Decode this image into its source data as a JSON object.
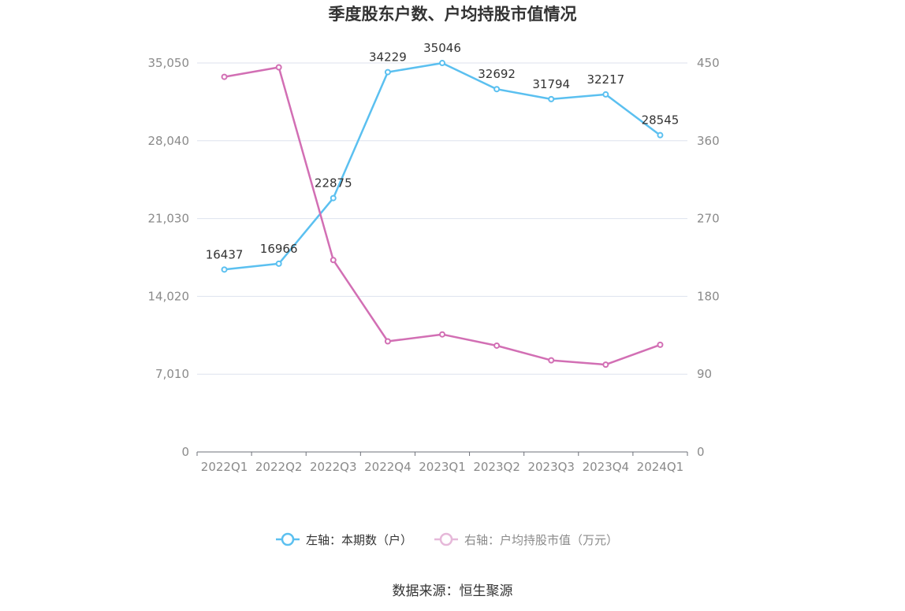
{
  "chart_data": {
    "type": "line",
    "title": "季度股东户数、户均持股市值情况",
    "categories": [
      "2022Q1",
      "2022Q2",
      "2022Q3",
      "2022Q4",
      "2023Q1",
      "2023Q2",
      "2023Q3",
      "2023Q4",
      "2024Q1"
    ],
    "left_axis": {
      "ticks": [
        "0",
        "7,010",
        "14,020",
        "21,030",
        "28,040",
        "35,050"
      ],
      "ylim": [
        0,
        35050
      ]
    },
    "right_axis": {
      "ticks": [
        "0",
        "90",
        "180",
        "270",
        "360",
        "450"
      ],
      "ylim": [
        0,
        450
      ]
    },
    "series": [
      {
        "name": "左轴：本期数（户）",
        "axis": "left",
        "color": "#5bc0f0",
        "values": [
          16437,
          16966,
          22875,
          34229,
          35046,
          32692,
          31794,
          32217,
          28545
        ],
        "labels": [
          "16437",
          "16966",
          "22875",
          "34229",
          "35046",
          "32692",
          "31794",
          "32217",
          "28545"
        ]
      },
      {
        "name": "右轴：户均持股市值（万元）",
        "axis": "right",
        "color": "#d26fb4",
        "values": [
          434,
          445,
          222,
          128,
          136,
          123,
          106,
          101,
          124
        ]
      }
    ],
    "grid": true,
    "legend_position": "bottom"
  },
  "source": "数据来源：恒生聚源"
}
